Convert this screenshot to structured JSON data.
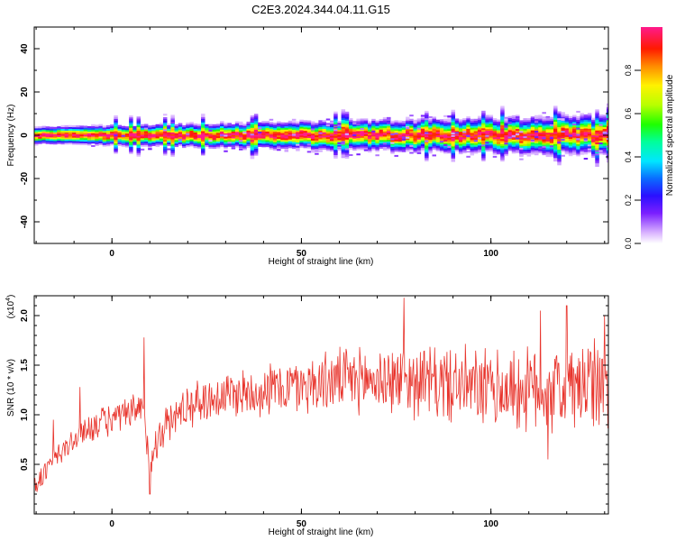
{
  "title": "C2E3.2024.344.04.11.G15",
  "chart_data": [
    {
      "type": "heatmap",
      "xlabel": "Height of straight line (km)",
      "ylabel": "Frequency (Hz)",
      "xlim": [
        -20.5,
        131
      ],
      "ylim": [
        -50,
        50
      ],
      "xticks": [
        0,
        50,
        100
      ],
      "yticks": [
        -40,
        -20,
        0,
        20,
        40
      ],
      "colorbar": {
        "label": "Normalized spectral amplitude",
        "ticks": [
          "0.0",
          "0.2",
          "0.4",
          "0.6",
          "0.8"
        ],
        "tick_values": [
          0.0,
          0.2,
          0.4,
          0.6,
          0.8
        ],
        "range": [
          0,
          1
        ],
        "colormap": "rainbow (white-violet-blue-cyan-green-yellow-red-pink)"
      },
      "ridge_frequency_hz": 0,
      "ridge_width_hz": 4,
      "spread_increases_with_height": true
    },
    {
      "type": "line",
      "xlabel": "Height of straight line (km)",
      "ylabel": "SNR (10 * v/v)",
      "y_multiplier_label": "(x10",
      "y_multiplier_exp": "4",
      "y_multiplier_close": ")",
      "xlim": [
        -20.5,
        131
      ],
      "ylim": [
        0,
        2.2
      ],
      "xticks": [
        0,
        50,
        100
      ],
      "yticks": [
        0.5,
        1.0,
        1.5,
        2.0
      ],
      "ytick_labels": [
        "0.5",
        "1.0",
        "1.5",
        "2.0"
      ],
      "series_color": "#e8342c",
      "trend_points": [
        {
          "x": -20,
          "y": 0.3
        },
        {
          "x": -15,
          "y": 0.55
        },
        {
          "x": -10,
          "y": 0.75
        },
        {
          "x": -5,
          "y": 0.9
        },
        {
          "x": 0,
          "y": 0.95
        },
        {
          "x": 5,
          "y": 1.0
        },
        {
          "x": 8,
          "y": 1.05
        },
        {
          "x": 10,
          "y": 0.55
        },
        {
          "x": 13,
          "y": 0.85
        },
        {
          "x": 20,
          "y": 1.1
        },
        {
          "x": 30,
          "y": 1.2
        },
        {
          "x": 40,
          "y": 1.25
        },
        {
          "x": 50,
          "y": 1.3
        },
        {
          "x": 60,
          "y": 1.35
        },
        {
          "x": 70,
          "y": 1.35
        },
        {
          "x": 80,
          "y": 1.35
        },
        {
          "x": 90,
          "y": 1.3
        },
        {
          "x": 100,
          "y": 1.25
        },
        {
          "x": 110,
          "y": 1.25
        },
        {
          "x": 120,
          "y": 1.25
        },
        {
          "x": 131,
          "y": 1.3
        }
      ],
      "spikes": [
        {
          "x": -15.5,
          "y": 0.95
        },
        {
          "x": -8.5,
          "y": 1.28
        },
        {
          "x": 8.5,
          "y": 1.78
        },
        {
          "x": 10,
          "y": 0.2
        },
        {
          "x": 77,
          "y": 2.18
        },
        {
          "x": 113,
          "y": 2.05
        },
        {
          "x": 115,
          "y": 0.55
        },
        {
          "x": 120,
          "y": 2.1
        },
        {
          "x": 130,
          "y": 2.0
        }
      ]
    }
  ]
}
